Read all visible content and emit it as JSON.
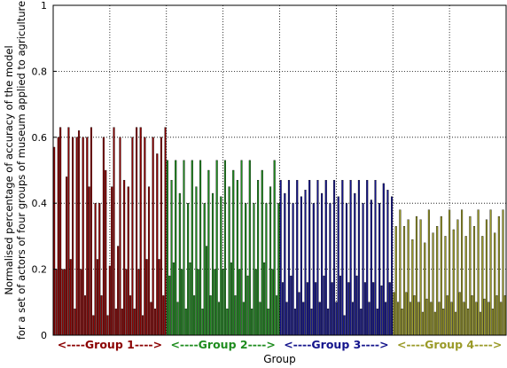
{
  "chart_data": {
    "type": "bar",
    "xlabel": "Group",
    "ylabel_lines": [
      "Normalised percentage of accuracy of the model",
      "for a set of actors of four groups of museum applied to agriculture"
    ],
    "ylim": [
      0,
      1
    ],
    "yticks": [
      "0",
      "0.2",
      "0.4",
      "0.6",
      "0.8",
      "1"
    ],
    "grid": true,
    "groups": [
      {
        "label": "<----Group 1---->",
        "color": "#8b0000",
        "values": [
          0.57,
          0.2,
          0.6,
          0.63,
          0.2,
          0.2,
          0.48,
          0.63,
          0.23,
          0.6,
          0.08,
          0.6,
          0.62,
          0.2,
          0.6,
          0.12,
          0.6,
          0.45,
          0.63,
          0.06,
          0.4,
          0.23,
          0.4,
          0.12,
          0.6,
          0.5,
          0.06,
          0.21,
          0.45,
          0.63,
          0.08,
          0.27,
          0.6,
          0.08,
          0.47,
          0.2,
          0.45,
          0.12,
          0.6,
          0.08,
          0.63,
          0.2,
          0.63,
          0.06,
          0.6,
          0.23,
          0.45,
          0.1,
          0.6,
          0.08,
          0.55,
          0.23,
          0.6,
          0.12,
          0.63
        ]
      },
      {
        "label": "<----Group 2---->",
        "color": "#1e8c1e",
        "values": [
          0.53,
          0.18,
          0.47,
          0.22,
          0.53,
          0.1,
          0.43,
          0.2,
          0.53,
          0.08,
          0.4,
          0.22,
          0.53,
          0.12,
          0.45,
          0.2,
          0.53,
          0.08,
          0.4,
          0.27,
          0.5,
          0.12,
          0.43,
          0.2,
          0.53,
          0.1,
          0.42,
          0.2,
          0.53,
          0.08,
          0.45,
          0.22,
          0.5,
          0.12,
          0.47,
          0.2,
          0.53,
          0.1,
          0.4,
          0.18,
          0.53,
          0.08,
          0.4,
          0.2,
          0.47,
          0.1,
          0.5,
          0.22,
          0.4,
          0.08,
          0.45,
          0.2,
          0.53,
          0.12,
          0.4
        ]
      },
      {
        "label": "<----Group 3---->",
        "color": "#14148c",
        "values": [
          0.47,
          0.16,
          0.43,
          0.1,
          0.47,
          0.18,
          0.4,
          0.08,
          0.47,
          0.13,
          0.42,
          0.1,
          0.44,
          0.16,
          0.47,
          0.08,
          0.4,
          0.16,
          0.47,
          0.1,
          0.43,
          0.18,
          0.47,
          0.08,
          0.4,
          0.16,
          0.47,
          0.1,
          0.42,
          0.18,
          0.47,
          0.06,
          0.4,
          0.16,
          0.47,
          0.1,
          0.43,
          0.18,
          0.47,
          0.08,
          0.4,
          0.16,
          0.47,
          0.1,
          0.41,
          0.16,
          0.47,
          0.08,
          0.4,
          0.15,
          0.46,
          0.1,
          0.44,
          0.16,
          0.42
        ]
      },
      {
        "label": "<----Group 4---->",
        "color": "#9a9a28",
        "values": [
          0.13,
          0.33,
          0.1,
          0.38,
          0.08,
          0.33,
          0.13,
          0.35,
          0.1,
          0.29,
          0.12,
          0.36,
          0.1,
          0.35,
          0.07,
          0.28,
          0.11,
          0.38,
          0.1,
          0.31,
          0.07,
          0.33,
          0.1,
          0.36,
          0.08,
          0.3,
          0.12,
          0.38,
          0.1,
          0.32,
          0.07,
          0.35,
          0.13,
          0.38,
          0.1,
          0.3,
          0.08,
          0.36,
          0.12,
          0.33,
          0.1,
          0.38,
          0.07,
          0.3,
          0.11,
          0.35,
          0.1,
          0.38,
          0.08,
          0.31,
          0.12,
          0.36,
          0.1,
          0.38,
          0.12
        ]
      }
    ]
  }
}
